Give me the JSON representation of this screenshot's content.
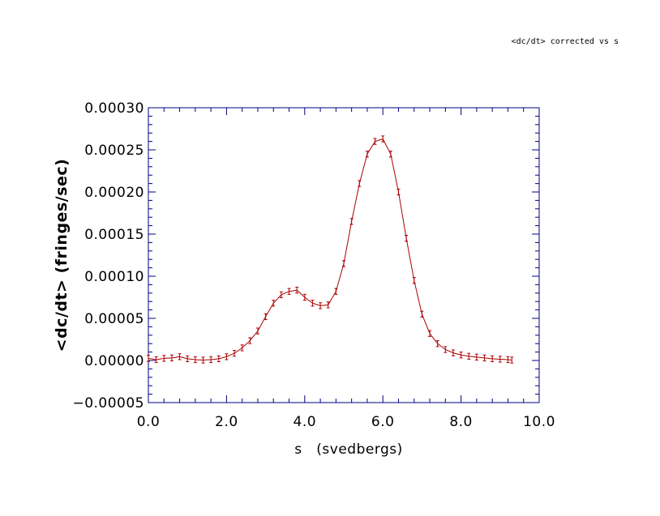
{
  "chart_data": {
    "type": "line",
    "title": "<dc/dt> corrected vs s",
    "xlabel": "s   (svedbergs)",
    "ylabel": "<dc/dt> (fringes/sec)",
    "xlim": [
      0.0,
      10.0
    ],
    "ylim": [
      -5e-05,
      0.0003
    ],
    "x_ticks": [
      "0.0",
      "2.0",
      "4.0",
      "6.0",
      "8.0",
      "10.0"
    ],
    "y_ticks": [
      "-0.00005",
      "0.00000",
      "0.00005",
      "0.00010",
      "0.00015",
      "0.00020",
      "0.00025",
      "0.00030"
    ],
    "grid": false,
    "legend": "none",
    "colors": {
      "series": "#aa0000",
      "axes": "#000080",
      "text": "#000000"
    },
    "series": [
      {
        "error_bars": true,
        "x": [
          0.0,
          0.2,
          0.4,
          0.6,
          0.8,
          1.0,
          1.2,
          1.4,
          1.6,
          1.8,
          2.0,
          2.2,
          2.4,
          2.6,
          2.8,
          3.0,
          3.2,
          3.4,
          3.6,
          3.8,
          4.0,
          4.2,
          4.4,
          4.6,
          4.8,
          5.0,
          5.2,
          5.4,
          5.6,
          5.8,
          6.0,
          6.2,
          6.4,
          6.6,
          6.8,
          7.0,
          7.2,
          7.4,
          7.6,
          7.8,
          8.0,
          8.2,
          8.4,
          8.6,
          8.8,
          9.0,
          9.2,
          9.3
        ],
        "y": [
          2.5e-06,
          1e-06,
          2.5e-06,
          3e-06,
          4.5e-06,
          2e-06,
          1e-06,
          5e-07,
          1e-06,
          2e-06,
          4.5e-06,
          8.5e-06,
          1.5e-05,
          2.35e-05,
          3.5e-05,
          5.2e-05,
          6.8e-05,
          7.8e-05,
          8.2e-05,
          8.35e-05,
          7.5e-05,
          6.8e-05,
          6.5e-05,
          6.6e-05,
          8.2e-05,
          0.000115,
          0.000165,
          0.00021,
          0.000245,
          0.00026,
          0.000263,
          0.000245,
          0.0002,
          0.000145,
          9.5e-05,
          5.5e-05,
          3.2e-05,
          2e-05,
          1.3e-05,
          9e-06,
          6.5e-06,
          5e-06,
          4e-06,
          3e-06,
          2e-06,
          1.5e-06,
          1e-06,
          5e-07
        ],
        "error": [
          3.5e-06,
          3.5e-06,
          3.5e-06,
          3.5e-06,
          3.5e-06,
          3.5e-06,
          3.5e-06,
          3.5e-06,
          3.5e-06,
          3.5e-06,
          3.5e-06,
          3.5e-06,
          3.5e-06,
          3.5e-06,
          3.5e-06,
          3.5e-06,
          3.5e-06,
          3.5e-06,
          3.5e-06,
          3.5e-06,
          3.5e-06,
          3.5e-06,
          3.5e-06,
          3.5e-06,
          3.5e-06,
          3.5e-06,
          3.5e-06,
          3.5e-06,
          3.5e-06,
          3.5e-06,
          3.5e-06,
          3.5e-06,
          3.5e-06,
          3.5e-06,
          3.5e-06,
          3.5e-06,
          3.5e-06,
          3.5e-06,
          3.5e-06,
          3.5e-06,
          3.5e-06,
          3.5e-06,
          3.5e-06,
          3.5e-06,
          3.5e-06,
          3.5e-06,
          3.5e-06,
          3.5e-06
        ]
      }
    ]
  }
}
